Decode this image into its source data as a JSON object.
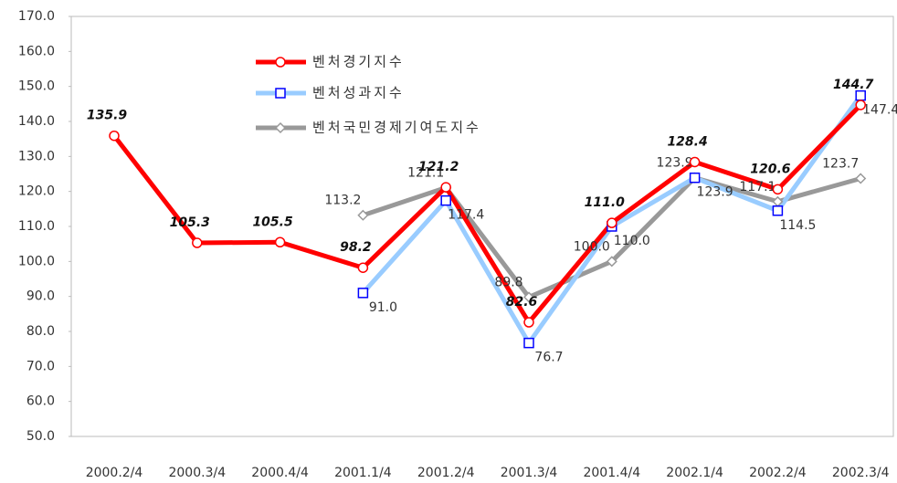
{
  "chart_data": {
    "type": "line",
    "categories": [
      "2000.2/4",
      "2000.3/4",
      "2000.4/4",
      "2001.1/4",
      "2001.2/4",
      "2001.3/4",
      "2001.4/4",
      "2002.1/4",
      "2002.2/4",
      "2002.3/4"
    ],
    "series": [
      {
        "name": "벤처경기지수",
        "color": "#ff0000",
        "marker": "circle",
        "values": [
          135.9,
          105.3,
          105.5,
          98.2,
          121.2,
          82.6,
          111.0,
          128.4,
          120.6,
          144.7
        ],
        "value_labels": [
          "135.9",
          "105.3",
          "105.5",
          "98.2",
          "121.2",
          "82.6",
          "111.0",
          "128.4",
          "120.6",
          "144.7"
        ]
      },
      {
        "name": "벤처성과지수",
        "color": "#99ccff",
        "marker": "square",
        "values": [
          null,
          null,
          null,
          91.0,
          117.4,
          76.7,
          110.0,
          123.9,
          114.5,
          147.4
        ],
        "value_labels": [
          null,
          null,
          null,
          "91.0",
          "117.4",
          "76.7",
          "110.0",
          "123.9",
          "114.5",
          "147.4"
        ]
      },
      {
        "name": "벤처국민경제기여도지수",
        "color": "#999999",
        "marker": "diamond",
        "values": [
          null,
          null,
          null,
          113.2,
          121.1,
          89.8,
          100.0,
          123.9,
          117.1,
          123.7
        ],
        "value_labels": [
          null,
          null,
          null,
          "113.2",
          "121.1",
          "89.8",
          "100.0",
          "123.9",
          "117.1",
          "123.7"
        ]
      }
    ],
    "ylim": [
      50,
      170
    ],
    "yticks": [
      {
        "value": 50,
        "label": "50.0"
      },
      {
        "value": 60,
        "label": "60.0"
      },
      {
        "value": 70,
        "label": "70.0"
      },
      {
        "value": 80,
        "label": "80.0"
      },
      {
        "value": 90,
        "label": "90.0"
      },
      {
        "value": 100,
        "label": "100.0"
      },
      {
        "value": 110,
        "label": "110.0"
      },
      {
        "value": 120,
        "label": "120.0"
      },
      {
        "value": 130,
        "label": "130.0"
      },
      {
        "value": 140,
        "label": "140.0"
      },
      {
        "value": 150,
        "label": "150.0"
      },
      {
        "value": 160,
        "label": "160.0"
      },
      {
        "value": 170,
        "label": "170.0"
      }
    ],
    "grid": false,
    "legend": "upper-left"
  }
}
